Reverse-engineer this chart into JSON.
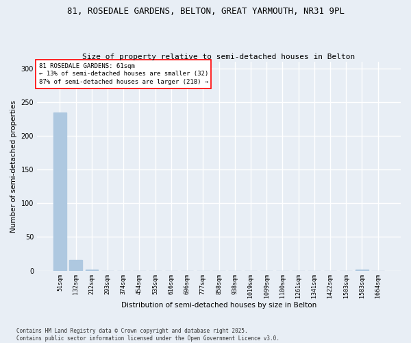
{
  "title": "81, ROSEDALE GARDENS, BELTON, GREAT YARMOUTH, NR31 9PL",
  "subtitle": "Size of property relative to semi-detached houses in Belton",
  "xlabel": "Distribution of semi-detached houses by size in Belton",
  "ylabel": "Number of semi-detached properties",
  "categories": [
    "51sqm",
    "132sqm",
    "212sqm",
    "293sqm",
    "374sqm",
    "454sqm",
    "535sqm",
    "616sqm",
    "696sqm",
    "777sqm",
    "858sqm",
    "938sqm",
    "1019sqm",
    "1099sqm",
    "1180sqm",
    "1261sqm",
    "1341sqm",
    "1422sqm",
    "1503sqm",
    "1583sqm",
    "1664sqm"
  ],
  "values": [
    235,
    16,
    2,
    0,
    0,
    0,
    0,
    0,
    0,
    0,
    0,
    0,
    0,
    0,
    0,
    0,
    0,
    0,
    0,
    2,
    0
  ],
  "bar_color": "#aec8e0",
  "ylim": [
    0,
    310
  ],
  "yticks": [
    0,
    50,
    100,
    150,
    200,
    250,
    300
  ],
  "annotation_text": "81 ROSEDALE GARDENS: 61sqm\n← 13% of semi-detached houses are smaller (32)\n87% of semi-detached houses are larger (218) →",
  "annotation_box_color": "#ffffff",
  "annotation_border_color": "red",
  "footer_text": "Contains HM Land Registry data © Crown copyright and database right 2025.\nContains public sector information licensed under the Open Government Licence v3.0.",
  "background_color": "#e8eef5",
  "plot_background_color": "#e8eef5",
  "grid_color": "#ffffff",
  "title_fontsize": 9,
  "subtitle_fontsize": 8,
  "tick_fontsize": 6,
  "ylabel_fontsize": 7.5,
  "xlabel_fontsize": 7.5,
  "footer_fontsize": 5.5,
  "annotation_fontsize": 6.5
}
